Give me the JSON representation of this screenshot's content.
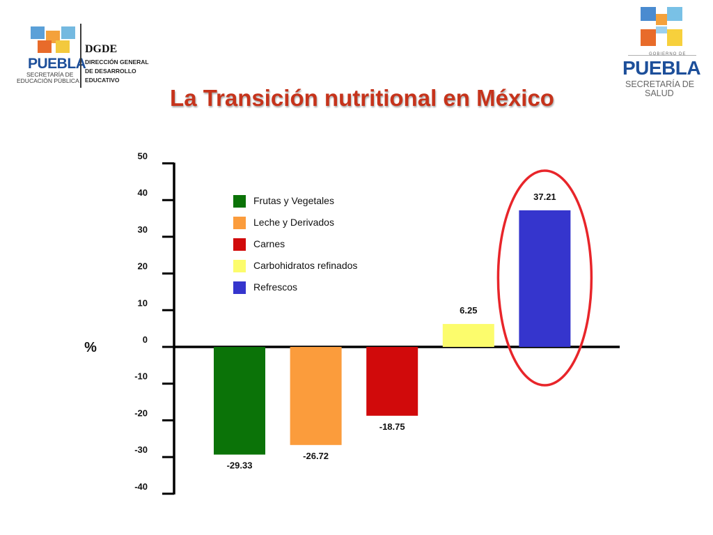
{
  "header": {
    "title": "La Transición nutritional en México",
    "logo_left": {
      "brand": "PUEBLA",
      "line1": "SECRETARÍA DE",
      "line2": "EDUCACIÓN PÚBLICA",
      "acronym": "DGDE",
      "desc": [
        "DIRECCIÓN GENERAL",
        "DE DESARROLLO",
        "EDUCATIVO"
      ]
    },
    "logo_right": {
      "gob": "GOBIERNO DE",
      "brand": "PUEBLA",
      "line1": "SECRETARÍA DE",
      "line2": "SALUD"
    }
  },
  "colors": {
    "title": "#c6331b",
    "brand_blue": "#1d4f9a",
    "highlight": "#e8252a"
  },
  "chart_data": {
    "type": "bar",
    "title": "La Transición nutritional en México",
    "ylabel": "%",
    "xlabel": "",
    "ylim": [
      -40,
      50
    ],
    "yticks": [
      50,
      40,
      30,
      20,
      10,
      0,
      -10,
      -20,
      -30,
      -40
    ],
    "legend_position": "top-left",
    "grid": false,
    "categories": [
      "Frutas y Vegetales",
      "Leche y Derivados",
      "Carnes",
      "Carbohidratos refinados",
      "Refrescos"
    ],
    "values": [
      -29.33,
      -26.72,
      -18.75,
      6.25,
      37.21
    ],
    "value_labels": [
      "-29.33",
      "-26.72",
      "-18.75",
      "6.25",
      "37.21"
    ],
    "colors": [
      "#0b7308",
      "#fb9c3c",
      "#d10a0b",
      "#fcfc6c",
      "#3535cd"
    ],
    "highlighted_category": "Refrescos"
  }
}
